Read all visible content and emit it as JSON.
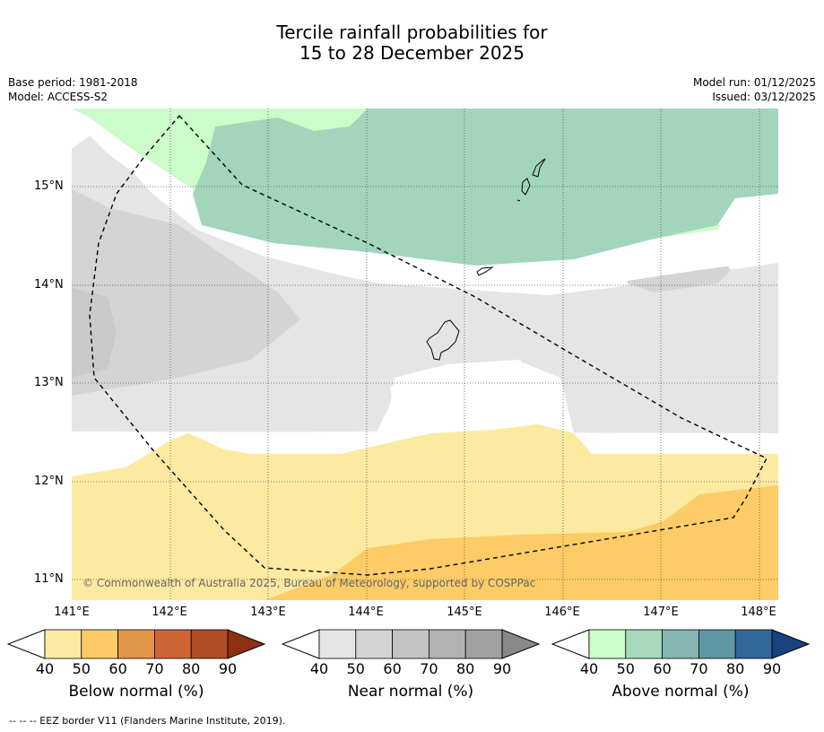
{
  "title_line1": "Tercile rainfall probabilities for",
  "title_line2": "15 to 28 December 2025",
  "base_period": "Base period: 1981-2018",
  "model": "Model: ACCESS-S2",
  "model_run": "Model run: 01/12/2025",
  "issued": "Issued: 03/12/2025",
  "lat_labels": [
    "15°N",
    "14°N",
    "13°N",
    "12°N",
    "11°N"
  ],
  "lon_labels": [
    "141°E",
    "142°E",
    "143°E",
    "144°E",
    "145°E",
    "146°E",
    "147°E",
    "148°E"
  ],
  "copyright": "© Commonwealth of Australia 2025, Bureau of Meteorology, supported by COSPPac",
  "colorbars": [
    {
      "label": "Below normal (%)",
      "ticks": [
        "40",
        "50",
        "60",
        "70",
        "80",
        "90"
      ],
      "colors": [
        "#fdeaa1",
        "#fdcc66",
        "#e19548",
        "#cf6535",
        "#b14b26",
        "#8e3113"
      ]
    },
    {
      "label": "Near normal (%)",
      "ticks": [
        "40",
        "50",
        "60",
        "70",
        "80",
        "90"
      ],
      "colors": [
        "#e5e5e5",
        "#d4d4d4",
        "#c4c4c4",
        "#b2b2b2",
        "#a1a1a1",
        "#888888"
      ]
    },
    {
      "label": "Above normal (%)",
      "ticks": [
        "40",
        "50",
        "60",
        "70",
        "80",
        "90"
      ],
      "colors": [
        "#ccfcc9",
        "#a8d8bd",
        "#85b5b0",
        "#5d97a3",
        "#33689a",
        "#18437e"
      ]
    }
  ],
  "footnote": "--  --  -- EEZ border V11 (Flanders Marine Institute, 2019)."
}
